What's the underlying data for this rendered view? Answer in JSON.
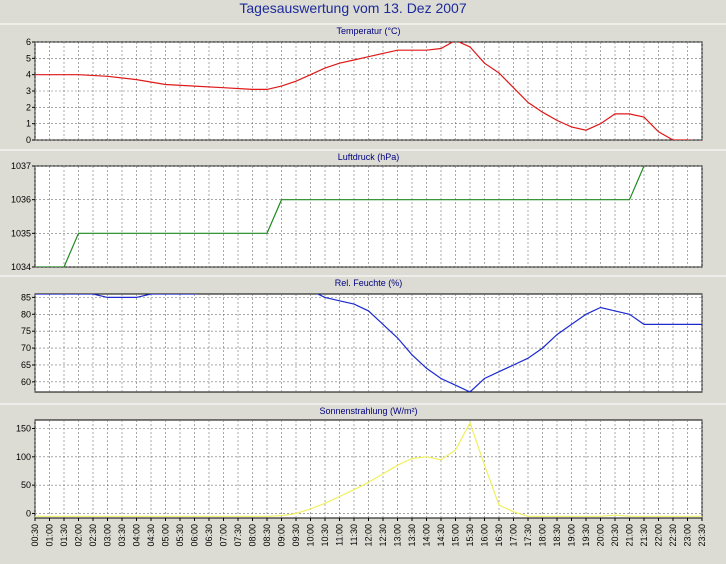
{
  "page_title": "Tagesauswertung vom 13. Dez 2007",
  "time_labels": [
    "00:30",
    "01:00",
    "01:30",
    "02:00",
    "02:30",
    "03:00",
    "03:30",
    "04:00",
    "04:30",
    "05:00",
    "05:30",
    "06:00",
    "06:30",
    "07:00",
    "07:30",
    "08:00",
    "08:30",
    "09:00",
    "09:30",
    "10:00",
    "10:30",
    "11:00",
    "11:30",
    "12:00",
    "12:30",
    "13:00",
    "13:30",
    "14:00",
    "14:30",
    "15:00",
    "15:30",
    "16:00",
    "16:30",
    "17:00",
    "17:30",
    "18:00",
    "18:30",
    "19:00",
    "19:30",
    "20:00",
    "20:30",
    "21:00",
    "21:30",
    "22:00",
    "22:30",
    "23:00",
    "23:30"
  ],
  "colors": {
    "background": "#dcdcd4",
    "plot_background": "#ffffff",
    "title": "#1c2a9c",
    "grid": "#707070",
    "temperature": "#e01818",
    "pressure": "#1e8a1e",
    "humidity": "#1c2ad0",
    "radiation": "#f0f060"
  },
  "chart_data": [
    {
      "type": "line",
      "title": "Temperatur (°C)",
      "ylim": [
        0,
        6
      ],
      "yticks": [
        0,
        1,
        2,
        3,
        4,
        5,
        6
      ],
      "grid": true,
      "series": [
        {
          "color_key": "temperature",
          "x": [
            "00:30",
            "01:00",
            "02:00",
            "03:00",
            "04:00",
            "05:00",
            "06:00",
            "07:00",
            "08:00",
            "08:30",
            "09:00",
            "09:30",
            "10:00",
            "10:30",
            "11:00",
            "11:30",
            "12:00",
            "12:30",
            "13:00",
            "13:30",
            "14:00",
            "14:30",
            "15:00",
            "15:30",
            "16:00",
            "16:30",
            "17:00",
            "17:30",
            "18:00",
            "18:30",
            "19:00",
            "19:30",
            "20:00",
            "20:30",
            "21:00",
            "21:30",
            "22:00",
            "22:30",
            "23:00",
            "23:30"
          ],
          "values": [
            4.0,
            4.0,
            4.0,
            3.9,
            3.7,
            3.4,
            3.3,
            3.2,
            3.1,
            3.1,
            3.3,
            3.6,
            4.0,
            4.4,
            4.7,
            4.9,
            5.1,
            5.3,
            5.5,
            5.5,
            5.5,
            5.6,
            6.1,
            5.7,
            4.7,
            4.1,
            3.2,
            2.3,
            1.7,
            1.2,
            0.8,
            0.6,
            1.0,
            1.6,
            1.6,
            1.4,
            0.5,
            0.0,
            0.0,
            -0.1
          ]
        }
      ]
    },
    {
      "type": "line",
      "title": "Luftdruck (hPa)",
      "ylim": [
        1034,
        1037
      ],
      "yticks": [
        1034,
        1035,
        1036,
        1037
      ],
      "grid": true,
      "series": [
        {
          "color_key": "pressure",
          "x": [
            "00:30",
            "01:30",
            "02:00",
            "08:30",
            "09:00",
            "21:00",
            "21:30"
          ],
          "values": [
            1034,
            1034,
            1035,
            1035,
            1036,
            1036,
            1037
          ]
        }
      ]
    },
    {
      "type": "line",
      "title": "Rel. Feuchte (%)",
      "ylim": [
        57,
        86
      ],
      "yticks": [
        60,
        65,
        70,
        75,
        80,
        85
      ],
      "grid": true,
      "series": [
        {
          "color_key": "humidity",
          "x": [
            "00:30",
            "01:00",
            "02:00",
            "02:30",
            "03:00",
            "04:00",
            "04:30",
            "05:00",
            "06:00",
            "06:30",
            "07:00",
            "09:30",
            "10:00",
            "10:30",
            "11:00",
            "11:30",
            "12:00",
            "12:30",
            "13:00",
            "13:30",
            "14:00",
            "14:30",
            "15:00",
            "15:30",
            "16:00",
            "16:30",
            "17:00",
            "17:30",
            "18:00",
            "18:30",
            "19:00",
            "19:30",
            "20:00",
            "20:30",
            "21:00",
            "21:30",
            "22:00",
            "22:30",
            "23:00",
            "23:30"
          ],
          "values": [
            86,
            86,
            86,
            86,
            85,
            85,
            86,
            86,
            86,
            87,
            88,
            88,
            87,
            85,
            84,
            83,
            81,
            77,
            73,
            68,
            64,
            61,
            59,
            57,
            61,
            63,
            65,
            67,
            70,
            74,
            77,
            80,
            82,
            81,
            80,
            77,
            77,
            77,
            77,
            77
          ]
        }
      ]
    },
    {
      "type": "line",
      "title": "Sonnenstrahlung (W/m²)",
      "ylim": [
        -8,
        165
      ],
      "yticks": [
        0,
        50,
        100,
        150
      ],
      "grid": true,
      "series": [
        {
          "color_key": "radiation",
          "x": [
            "00:30",
            "01:00",
            "02:00",
            "03:00",
            "04:00",
            "05:00",
            "06:00",
            "07:00",
            "08:00",
            "08:30",
            "09:00",
            "09:30",
            "10:00",
            "10:30",
            "11:00",
            "11:30",
            "12:00",
            "12:30",
            "13:00",
            "13:30",
            "14:00",
            "14:30",
            "15:00",
            "15:30",
            "16:00",
            "16:30",
            "17:00",
            "17:30",
            "18:00",
            "19:00",
            "20:00",
            "20:30",
            "21:00",
            "22:00",
            "23:00",
            "23:30"
          ],
          "values": [
            -5,
            -5,
            -5,
            -5,
            -5,
            -5,
            -5,
            -5,
            -5,
            -5,
            -4,
            0,
            8,
            18,
            30,
            42,
            55,
            70,
            85,
            97,
            100,
            95,
            112,
            160,
            85,
            15,
            3,
            -5,
            -5,
            -5,
            -5,
            -3,
            -5,
            -5,
            -5,
            -5
          ]
        }
      ]
    }
  ]
}
